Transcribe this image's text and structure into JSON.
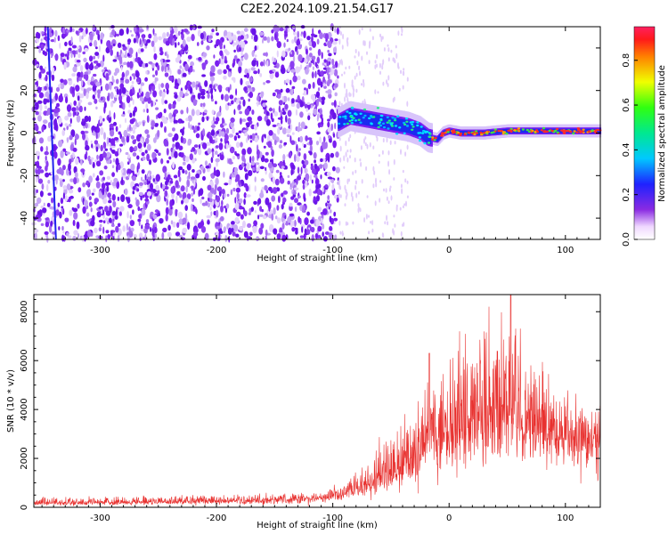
{
  "title": "C2E2.2024.109.21.54.G17",
  "chart_data": [
    {
      "type": "heatmap",
      "xlabel": "Height of straight line (km)",
      "ylabel": "Frequency (Hz)",
      "xlim": [
        -357,
        130
      ],
      "ylim": [
        -50,
        50
      ],
      "xticks": [
        -300,
        -200,
        -100,
        0,
        100
      ],
      "yticks": [
        -40,
        -20,
        0,
        20,
        40
      ],
      "colorbar": {
        "label": "Normalized spectral amplitude",
        "range": [
          0,
          0.95
        ],
        "ticks": [
          "0.0",
          "0.2",
          "0.4",
          "0.6",
          "0.8"
        ],
        "colormap": "rainbow (white-purple-blue-cyan-green-yellow-red)"
      },
      "signal_trace": {
        "x": [
          -95,
          -85,
          -75,
          -65,
          -55,
          -45,
          -35,
          -25,
          -18,
          -10,
          -5,
          0,
          10,
          30,
          50,
          70,
          90,
          110,
          130
        ],
        "y": [
          5,
          8,
          7,
          6,
          5,
          4,
          3,
          1,
          -2,
          -3,
          0,
          1,
          0,
          0,
          1,
          1,
          1,
          1,
          1
        ]
      },
      "noise_region": {
        "x": [
          -357,
          -95
        ],
        "y": [
          -50,
          50
        ]
      }
    },
    {
      "type": "line",
      "xlabel": "Height of straight line (km)",
      "ylabel": "SNR (10 * v/v)",
      "xlim": [
        -357,
        130
      ],
      "ylim": [
        0,
        8700
      ],
      "xticks": [
        -300,
        -200,
        -100,
        0,
        100
      ],
      "yticks": [
        0,
        2000,
        4000,
        6000,
        8000
      ],
      "color": "#e8312f",
      "envelope": {
        "x": [
          -357,
          -300,
          -200,
          -120,
          -100,
          -80,
          -60,
          -50,
          -40,
          -30,
          -20,
          -17,
          -10,
          0,
          10,
          20,
          30,
          40,
          50,
          53,
          60,
          70,
          80,
          90,
          100,
          110,
          120,
          130
        ],
        "baseline": [
          150,
          150,
          200,
          300,
          400,
          600,
          900,
          1100,
          1300,
          1600,
          2200,
          2500,
          2400,
          2600,
          2700,
          2900,
          3000,
          3000,
          3100,
          3200,
          3000,
          2900,
          2800,
          2700,
          2600,
          2600,
          2500,
          2500
        ],
        "peak": [
          400,
          400,
          450,
          600,
          800,
          1300,
          2400,
          3000,
          3200,
          3600,
          4800,
          6300,
          4500,
          6000,
          6200,
          7000,
          7200,
          7500,
          7700,
          8700,
          6500,
          5500,
          5200,
          4800,
          4500,
          4300,
          4100,
          3800
        ]
      }
    }
  ]
}
